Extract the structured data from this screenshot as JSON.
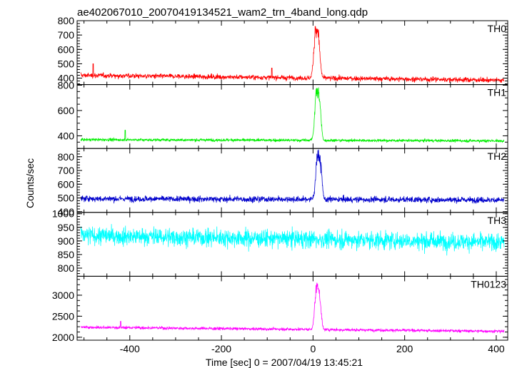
{
  "chart_data": {
    "type": "line",
    "title": "ae402067010_20070419134521_wam2_trn_4band_long.qdp",
    "xlabel": "Time [sec] 0 = 2007/04/19 13:45:21",
    "ylabel": "Counts/sec",
    "xlim": [
      -515,
      425
    ],
    "xticks": [
      -400,
      -200,
      0,
      200,
      400
    ],
    "panels": [
      {
        "name": "TH0",
        "color": "#ff0000",
        "ylim": [
          355,
          800
        ],
        "yticks": [
          400,
          500,
          600,
          700,
          800
        ],
        "baseline_start": 420,
        "baseline_end": 385,
        "noise": 22,
        "peak": 790,
        "peak_time": 6,
        "peak_width": 4,
        "spikes": [
          [
            -480,
            500
          ],
          [
            -90,
            470
          ]
        ]
      },
      {
        "name": "TH1",
        "color": "#00ee00",
        "ylim": [
          300,
          805
        ],
        "yticks": [
          400,
          600,
          800
        ],
        "baseline_start": 370,
        "baseline_end": 360,
        "noise": 14,
        "peak": 800,
        "peak_time": 8,
        "peak_width": 4,
        "spikes": [
          [
            -410,
            445
          ]
        ]
      },
      {
        "name": "TH2",
        "color": "#0000cc",
        "ylim": [
          395,
          860
        ],
        "yticks": [
          400,
          500,
          600,
          700,
          800
        ],
        "baseline_start": 495,
        "baseline_end": 485,
        "noise": 28,
        "peak": 850,
        "peak_time": 10,
        "peak_width": 4,
        "spikes": []
      },
      {
        "name": "TH3",
        "color": "#00ffff",
        "ylim": [
          770,
          1005
        ],
        "yticks": [
          800,
          850,
          900,
          950,
          1000
        ],
        "baseline_start": 920,
        "baseline_end": 895,
        "noise": 42,
        "peak": 0,
        "peak_time": 0,
        "peak_width": 0,
        "spikes": []
      },
      {
        "name": "TH0123",
        "color": "#ff00ff",
        "ylim": [
          1930,
          3450
        ],
        "yticks": [
          2000,
          2500,
          3000
        ],
        "baseline_start": 2240,
        "baseline_end": 2140,
        "noise": 45,
        "peak": 3350,
        "peak_time": 8,
        "peak_width": 4,
        "spikes": [
          [
            -420,
            2380
          ]
        ]
      }
    ],
    "grid": false,
    "legend": "none"
  }
}
